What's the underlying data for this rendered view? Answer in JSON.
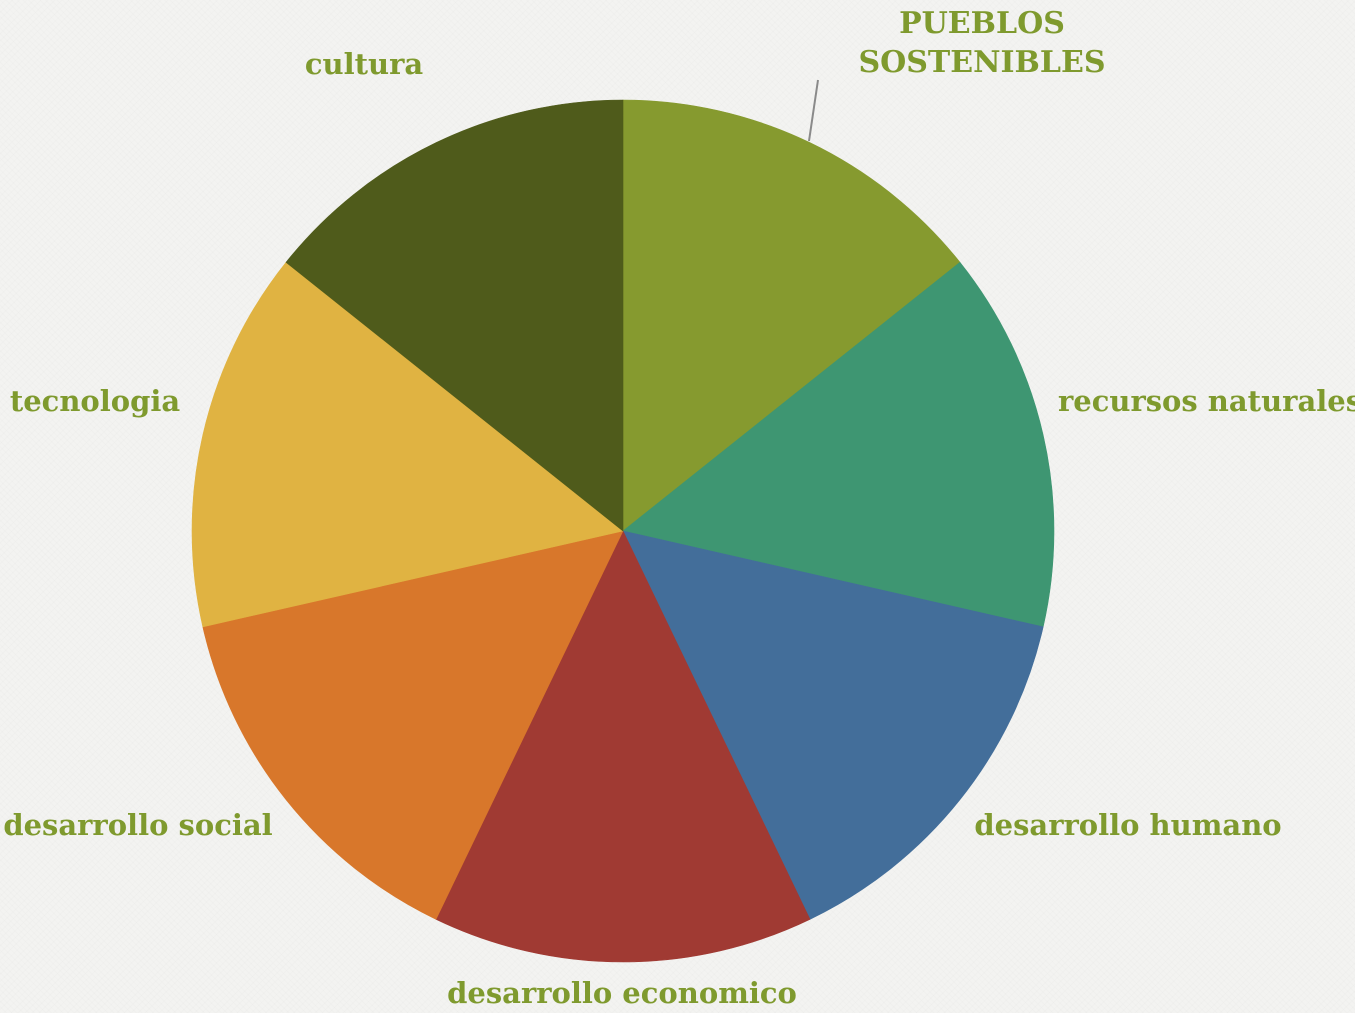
{
  "chart_data": {
    "type": "pie",
    "title_lines": [
      "PUEBLOS",
      "SOSTENIBLES"
    ],
    "start_angle_deg": 0,
    "direction": "clockwise",
    "label_color": "#7f9a2e",
    "leader_color": "#8a8a8a",
    "slices": [
      {
        "label": "PUEBLOS SOSTENIBLES",
        "value": 1,
        "color": "#869a2f"
      },
      {
        "label": "recursos naturales",
        "value": 1,
        "color": "#3e9672"
      },
      {
        "label": "desarrollo humano",
        "value": 1,
        "color": "#436e9a"
      },
      {
        "label": "desarrollo economico",
        "value": 1,
        "color": "#a03a33"
      },
      {
        "label": "desarrollo social",
        "value": 1,
        "color": "#d8772b"
      },
      {
        "label": "tecnologia",
        "value": 1,
        "color": "#e0b342"
      },
      {
        "label": "cultura",
        "value": 1,
        "color": "#4f5b1b"
      }
    ]
  }
}
